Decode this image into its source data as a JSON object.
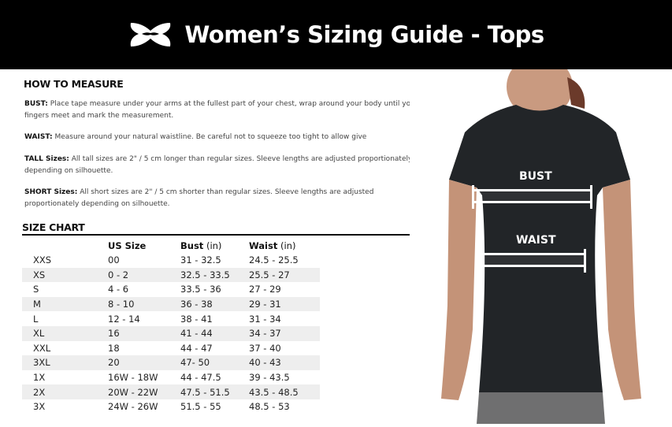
{
  "header": {
    "title": "Women’s Sizing Guide - Tops",
    "logo": "under-armour-logo"
  },
  "how_to_measure": {
    "heading": "HOW TO MEASURE",
    "items": [
      {
        "label": "BUST:",
        "text": " Place tape measure under your arms at the fullest part of your chest, wrap around your body until your fingers meet and mark the measurement."
      },
      {
        "label": "WAIST:",
        "text": " Measure around your natural waistline. Be careful not to squeeze too tight to allow give"
      },
      {
        "label": "TALL Sizes:",
        "text": " All tall sizes are 2\" / 5 cm longer than regular sizes. Sleeve lengths are adjusted proportionately depending on silhouette."
      },
      {
        "label": "SHORT Sizes:",
        "text": " All short sizes are 2\" / 5 cm shorter than regular sizes. Sleeve lengths are adjusted proportionately depending on silhouette."
      }
    ]
  },
  "size_chart": {
    "heading": "SIZE CHART",
    "columns": [
      {
        "bold": "",
        "unit": ""
      },
      {
        "bold": "US Size",
        "unit": ""
      },
      {
        "bold": "Bust",
        "unit": " (in)"
      },
      {
        "bold": "Waist",
        "unit": " (in)"
      }
    ],
    "rows": [
      [
        "XXS",
        "00",
        "31 - 32.5",
        "24.5 - 25.5"
      ],
      [
        "XS",
        "0 - 2",
        "32.5 - 33.5",
        "25.5 - 27"
      ],
      [
        "S",
        "4 - 6",
        "33.5 - 36",
        "27 - 29"
      ],
      [
        "M",
        "8 - 10",
        "36 - 38",
        "29 - 31"
      ],
      [
        "L",
        "12 - 14",
        "38 - 41",
        "31 - 34"
      ],
      [
        "XL",
        "16",
        "41 - 44",
        "34 - 37"
      ],
      [
        "XXL",
        "18",
        "44 - 47",
        "37 - 40"
      ],
      [
        "3XL",
        "20",
        "47- 50",
        "40 - 43"
      ],
      [
        "1X",
        "16W - 18W",
        "44 - 47.5",
        "39 - 43.5"
      ],
      [
        "2X",
        "20W - 22W",
        "47.5 - 51.5",
        "43.5 - 48.5"
      ],
      [
        "3X",
        "24W - 26W",
        "51.5 - 55",
        "48.5 - 53"
      ]
    ]
  },
  "figure": {
    "bust_label": "BUST",
    "waist_label": "WAIST"
  }
}
